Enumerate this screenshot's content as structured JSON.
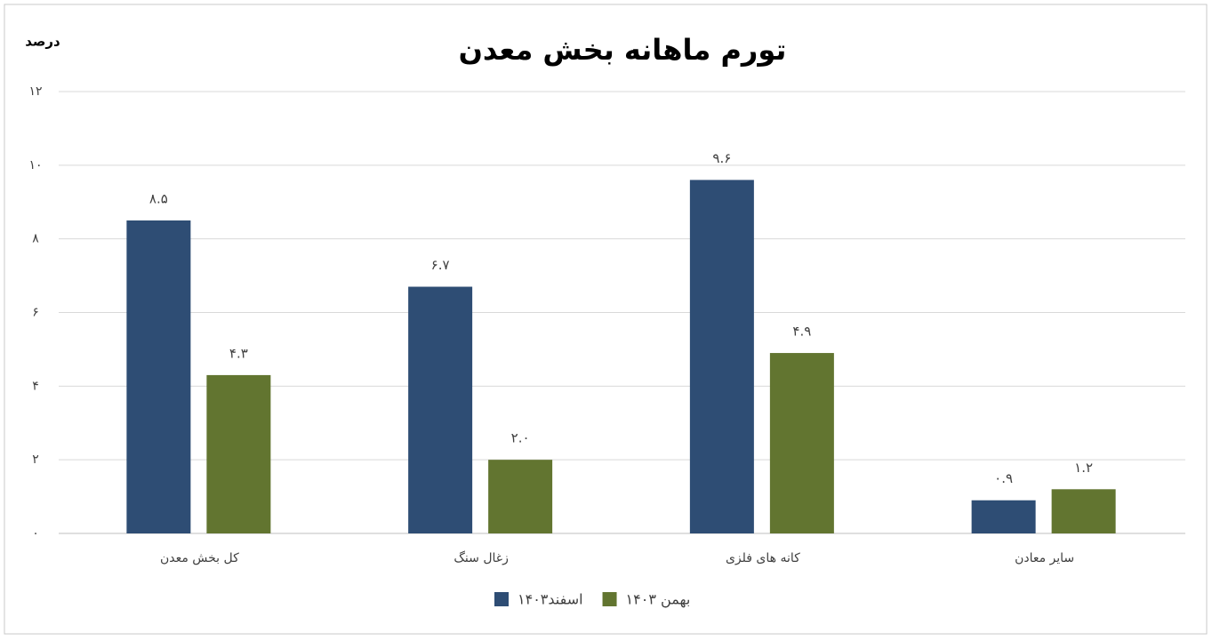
{
  "chart_data": {
    "type": "bar",
    "title": "تورم ماهانه بخش معدن",
    "y_label": "درصد",
    "categories": [
      "کل بخش معدن",
      "زغال سنگ",
      "کانه های فلزی",
      "سایر معادن"
    ],
    "series": [
      {
        "name": "اسفند۱۴۰۳",
        "color": "#2e4d74",
        "values": [
          8.5,
          6.7,
          9.6,
          0.9
        ],
        "value_labels": [
          "۸.۵",
          "۶.۷",
          "۹.۶",
          "۰.۹"
        ]
      },
      {
        "name": "بهمن ۱۴۰۳",
        "color": "#627530",
        "values": [
          4.3,
          2.0,
          4.9,
          1.2
        ],
        "value_labels": [
          "۴.۳",
          "۲.۰",
          "۴.۹",
          "۱.۲"
        ]
      }
    ],
    "ylim": [
      0,
      12
    ],
    "yticks": [
      {
        "value": 0,
        "label": "۰"
      },
      {
        "value": 2,
        "label": "۲"
      },
      {
        "value": 4,
        "label": "۴"
      },
      {
        "value": 6,
        "label": "۶"
      },
      {
        "value": 8,
        "label": "۸"
      },
      {
        "value": 10,
        "label": "۱۰"
      },
      {
        "value": 12,
        "label": "۱۲"
      }
    ],
    "grid": true
  }
}
